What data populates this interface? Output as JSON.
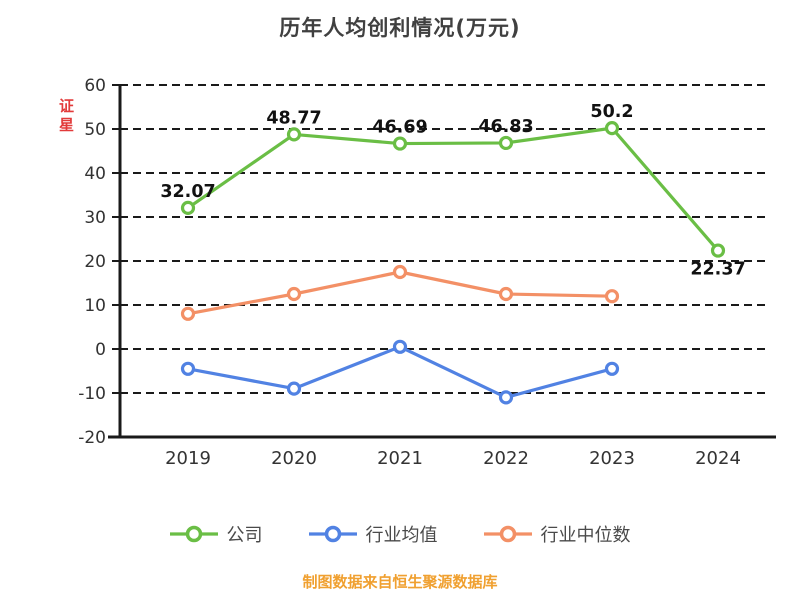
{
  "title": "历年人均创利情况(万元)",
  "watermark": "证星",
  "footer": "制图数据来自恒生聚源数据库",
  "colors": {
    "company": "#6abe45",
    "industry_avg": "#5182e3",
    "industry_median": "#f39066",
    "axis": "#1a1a1a",
    "grid": "#1a1a1a",
    "tick_label": "#333333",
    "value_label": "#111111",
    "title": "#404040",
    "footer": "#f0a030",
    "watermark": "#e23b3b"
  },
  "chart_data": {
    "type": "line",
    "title": "历年人均创利情况(万元)",
    "x": [
      "2019",
      "2020",
      "2021",
      "2022",
      "2023",
      "2024"
    ],
    "ylim": [
      -20,
      60
    ],
    "yticks": [
      60,
      50,
      40,
      30,
      20,
      10,
      0,
      -10,
      -20
    ],
    "grid": "horizontal-dashed",
    "legend_position": "bottom",
    "series": [
      {
        "name": "公司",
        "color": "#6abe45",
        "values": [
          32.07,
          48.77,
          46.69,
          46.83,
          50.2,
          22.37
        ],
        "labels": [
          "32.07",
          "48.77",
          "46.69",
          "46.83",
          "50.2",
          "22.37"
        ],
        "show_labels": true
      },
      {
        "name": "行业均值",
        "color": "#5182e3",
        "values": [
          -4.5,
          -9,
          0.5,
          -11,
          -4.5,
          null
        ],
        "show_labels": false
      },
      {
        "name": "行业中位数",
        "color": "#f39066",
        "values": [
          8,
          12.5,
          17.5,
          12.5,
          12,
          null
        ],
        "show_labels": false
      }
    ]
  },
  "legend": {
    "items": [
      {
        "label": "公司"
      },
      {
        "label": "行业均值"
      },
      {
        "label": "行业中位数"
      }
    ]
  }
}
